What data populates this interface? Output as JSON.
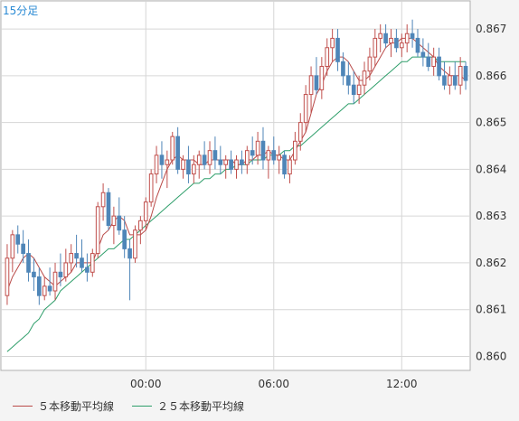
{
  "timeframe_label": "15分足",
  "colors": {
    "up": "#c0504d",
    "down": "#4f86b8",
    "ma5": "#b94a48",
    "ma25": "#2e9e6a",
    "grid": "#d6d6d6",
    "plot_bg": "#ffffff",
    "axis_text": "#333333"
  },
  "chart_data": {
    "type": "candlestick",
    "title": "",
    "xlabel": "",
    "ylabel": "",
    "y_ticks": [
      0.86,
      0.861,
      0.862,
      0.863,
      0.864,
      0.865,
      0.866,
      0.867
    ],
    "y_tick_labels": [
      "0.860",
      "0.861",
      "0.862",
      "0.863",
      "0.864",
      "0.865",
      "0.866",
      "0.867"
    ],
    "ylim": [
      0.8597,
      0.8676
    ],
    "x_tick_labels": [
      {
        "index": 26,
        "label": "00:00"
      },
      {
        "index": 50,
        "label": "06:00"
      },
      {
        "index": 74,
        "label": "12:00"
      }
    ],
    "grid": true,
    "legend": [
      {
        "label": "５本移動平均線",
        "color_key": "ma5"
      },
      {
        "label": "２５本移動平均線",
        "color_key": "ma25"
      }
    ],
    "candles_ohlc": [
      [
        0.8613,
        0.8624,
        0.8611,
        0.8621
      ],
      [
        0.8621,
        0.8627,
        0.8618,
        0.8626
      ],
      [
        0.8626,
        0.8628,
        0.8622,
        0.8624
      ],
      [
        0.8624,
        0.8627,
        0.862,
        0.8622
      ],
      [
        0.8622,
        0.8625,
        0.8616,
        0.8618
      ],
      [
        0.8618,
        0.8621,
        0.8614,
        0.8617
      ],
      [
        0.8617,
        0.8619,
        0.8611,
        0.8613
      ],
      [
        0.8613,
        0.8617,
        0.8612,
        0.8615
      ],
      [
        0.8615,
        0.8619,
        0.8613,
        0.8614
      ],
      [
        0.8614,
        0.862,
        0.8612,
        0.8618
      ],
      [
        0.8618,
        0.8622,
        0.8615,
        0.8617
      ],
      [
        0.8617,
        0.8623,
        0.8616,
        0.862
      ],
      [
        0.862,
        0.8624,
        0.8618,
        0.8622
      ],
      [
        0.8622,
        0.8626,
        0.8619,
        0.8621
      ],
      [
        0.8621,
        0.8625,
        0.8618,
        0.8619
      ],
      [
        0.8619,
        0.8622,
        0.8616,
        0.8618
      ],
      [
        0.8618,
        0.8623,
        0.8617,
        0.8622
      ],
      [
        0.8622,
        0.8633,
        0.8621,
        0.8632
      ],
      [
        0.8632,
        0.8637,
        0.8629,
        0.8635
      ],
      [
        0.8635,
        0.8636,
        0.8627,
        0.8628
      ],
      [
        0.8628,
        0.8632,
        0.8624,
        0.863
      ],
      [
        0.863,
        0.8634,
        0.8626,
        0.8627
      ],
      [
        0.8627,
        0.863,
        0.8621,
        0.8623
      ],
      [
        0.8623,
        0.8625,
        0.8612,
        0.8621
      ],
      [
        0.8621,
        0.8628,
        0.862,
        0.8627
      ],
      [
        0.8627,
        0.863,
        0.8624,
        0.8629
      ],
      [
        0.8629,
        0.8634,
        0.8627,
        0.8633
      ],
      [
        0.8633,
        0.864,
        0.8632,
        0.8639
      ],
      [
        0.8639,
        0.8645,
        0.8637,
        0.8643
      ],
      [
        0.8643,
        0.8646,
        0.8638,
        0.8641
      ],
      [
        0.8641,
        0.8644,
        0.8636,
        0.8642
      ],
      [
        0.8642,
        0.8648,
        0.8641,
        0.8647
      ],
      [
        0.8647,
        0.8649,
        0.8639,
        0.864
      ],
      [
        0.864,
        0.8643,
        0.8638,
        0.8642
      ],
      [
        0.8642,
        0.8645,
        0.8637,
        0.8639
      ],
      [
        0.8639,
        0.8643,
        0.8637,
        0.8641
      ],
      [
        0.8641,
        0.8644,
        0.8638,
        0.8643
      ],
      [
        0.8643,
        0.8646,
        0.864,
        0.8641
      ],
      [
        0.8641,
        0.8646,
        0.8639,
        0.8644
      ],
      [
        0.8644,
        0.8647,
        0.864,
        0.8642
      ],
      [
        0.8642,
        0.8645,
        0.8639,
        0.8641
      ],
      [
        0.8641,
        0.8643,
        0.8638,
        0.8642
      ],
      [
        0.8642,
        0.8644,
        0.8639,
        0.864
      ],
      [
        0.864,
        0.8643,
        0.8638,
        0.8642
      ],
      [
        0.8642,
        0.8644,
        0.8639,
        0.8641
      ],
      [
        0.8641,
        0.8645,
        0.8639,
        0.8644
      ],
      [
        0.8644,
        0.8647,
        0.8641,
        0.8643
      ],
      [
        0.8643,
        0.8648,
        0.8641,
        0.8646
      ],
      [
        0.8646,
        0.8649,
        0.864,
        0.8642
      ],
      [
        0.8642,
        0.8645,
        0.8638,
        0.8644
      ],
      [
        0.8644,
        0.8647,
        0.8641,
        0.8642
      ],
      [
        0.8642,
        0.8645,
        0.8639,
        0.8643
      ],
      [
        0.8643,
        0.8644,
        0.8638,
        0.8639
      ],
      [
        0.8639,
        0.8643,
        0.8637,
        0.8642
      ],
      [
        0.8642,
        0.8648,
        0.8641,
        0.8646
      ],
      [
        0.8646,
        0.8652,
        0.8644,
        0.865
      ],
      [
        0.865,
        0.8658,
        0.8648,
        0.8656
      ],
      [
        0.8656,
        0.8662,
        0.8652,
        0.866
      ],
      [
        0.866,
        0.8664,
        0.8656,
        0.8657
      ],
      [
        0.8657,
        0.8664,
        0.8655,
        0.8662
      ],
      [
        0.8662,
        0.8668,
        0.866,
        0.8666
      ],
      [
        0.8666,
        0.867,
        0.8663,
        0.8668
      ],
      [
        0.8668,
        0.867,
        0.8661,
        0.8663
      ],
      [
        0.8663,
        0.8665,
        0.8658,
        0.866
      ],
      [
        0.866,
        0.8663,
        0.8656,
        0.8658
      ],
      [
        0.8658,
        0.8661,
        0.8654,
        0.8656
      ],
      [
        0.8656,
        0.866,
        0.8654,
        0.8658
      ],
      [
        0.8658,
        0.8663,
        0.8656,
        0.8661
      ],
      [
        0.8661,
        0.8666,
        0.8659,
        0.8664
      ],
      [
        0.8664,
        0.867,
        0.8662,
        0.8668
      ],
      [
        0.8668,
        0.8671,
        0.8665,
        0.8669
      ],
      [
        0.8669,
        0.8671,
        0.8666,
        0.8667
      ],
      [
        0.8667,
        0.867,
        0.8664,
        0.8668
      ],
      [
        0.8668,
        0.867,
        0.8665,
        0.8666
      ],
      [
        0.8666,
        0.8669,
        0.8664,
        0.8667
      ],
      [
        0.8667,
        0.8671,
        0.8665,
        0.8669
      ],
      [
        0.8669,
        0.8672,
        0.8666,
        0.8668
      ],
      [
        0.8668,
        0.867,
        0.8664,
        0.8665
      ],
      [
        0.8665,
        0.8668,
        0.8662,
        0.8664
      ],
      [
        0.8664,
        0.8667,
        0.8661,
        0.8662
      ],
      [
        0.8662,
        0.8666,
        0.866,
        0.8664
      ],
      [
        0.8664,
        0.8666,
        0.8659,
        0.866
      ],
      [
        0.866,
        0.8663,
        0.8657,
        0.8658
      ],
      [
        0.8658,
        0.8662,
        0.8656,
        0.866
      ],
      [
        0.866,
        0.8663,
        0.8657,
        0.8658
      ],
      [
        0.8658,
        0.8664,
        0.8656,
        0.8662
      ],
      [
        0.8662,
        0.8663,
        0.8657,
        0.8659
      ]
    ],
    "ma5": [
      0.8614,
      0.8617,
      0.8619,
      0.8621,
      0.8622,
      0.8621,
      0.8619,
      0.8617,
      0.8616,
      0.8615,
      0.8616,
      0.8617,
      0.8618,
      0.862,
      0.862,
      0.862,
      0.862,
      0.8623,
      0.8626,
      0.8627,
      0.8629,
      0.863,
      0.8629,
      0.8626,
      0.8626,
      0.8626,
      0.8627,
      0.863,
      0.8634,
      0.8637,
      0.864,
      0.8642,
      0.8643,
      0.8642,
      0.8642,
      0.8642,
      0.8641,
      0.8641,
      0.8642,
      0.8642,
      0.8642,
      0.8642,
      0.8642,
      0.8641,
      0.8641,
      0.8642,
      0.8642,
      0.8643,
      0.8643,
      0.8644,
      0.8643,
      0.8643,
      0.8642,
      0.8642,
      0.8644,
      0.8646,
      0.8648,
      0.8652,
      0.8656,
      0.8658,
      0.8661,
      0.8663,
      0.8664,
      0.8664,
      0.8663,
      0.8661,
      0.8659,
      0.8659,
      0.866,
      0.8662,
      0.8664,
      0.8666,
      0.8667,
      0.8667,
      0.8668,
      0.8668,
      0.8668,
      0.8667,
      0.8666,
      0.8665,
      0.8664,
      0.8662,
      0.8661,
      0.866,
      0.866,
      0.866,
      0.8659
    ],
    "ma25": [
      0.8601,
      0.8602,
      0.8603,
      0.8604,
      0.8605,
      0.8607,
      0.8608,
      0.861,
      0.8611,
      0.8612,
      0.8614,
      0.8615,
      0.8616,
      0.8617,
      0.8618,
      0.8619,
      0.862,
      0.8621,
      0.8622,
      0.8623,
      0.8623,
      0.8624,
      0.8625,
      0.8625,
      0.8626,
      0.8627,
      0.8628,
      0.8629,
      0.863,
      0.8631,
      0.8632,
      0.8633,
      0.8634,
      0.8635,
      0.8636,
      0.8637,
      0.8637,
      0.8638,
      0.8638,
      0.8639,
      0.8639,
      0.864,
      0.864,
      0.8641,
      0.8641,
      0.8641,
      0.8642,
      0.8642,
      0.8642,
      0.8643,
      0.8643,
      0.8643,
      0.8644,
      0.8644,
      0.8645,
      0.8645,
      0.8646,
      0.8647,
      0.8648,
      0.8649,
      0.865,
      0.8651,
      0.8652,
      0.8653,
      0.8654,
      0.8654,
      0.8655,
      0.8656,
      0.8657,
      0.8658,
      0.8659,
      0.866,
      0.8661,
      0.8662,
      0.8663,
      0.8663,
      0.8664,
      0.8664,
      0.8664,
      0.8664,
      0.8664,
      0.8663,
      0.8663,
      0.8663,
      0.8663,
      0.8663,
      0.8663
    ]
  }
}
